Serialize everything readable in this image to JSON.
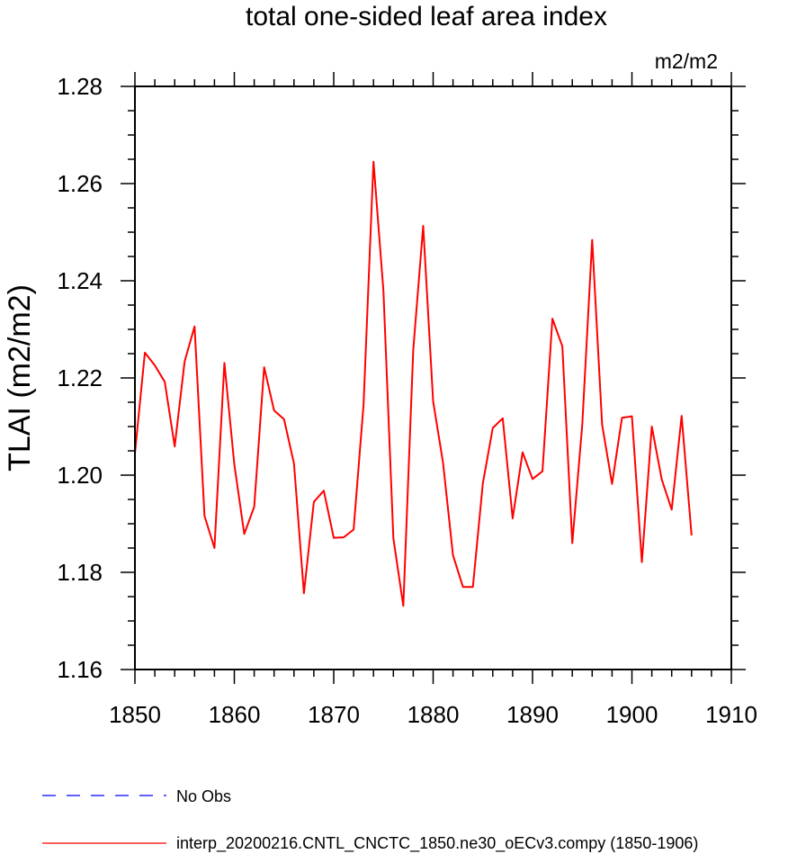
{
  "chart_data": {
    "type": "line",
    "title": "total one-sided leaf area index",
    "units_label": "m2/m2",
    "ylabel": "TLAI  (m2/m2)",
    "xlabel": "",
    "xlim": [
      1850,
      1910
    ],
    "ylim": [
      1.16,
      1.28
    ],
    "x_ticks": [
      1850,
      1860,
      1870,
      1880,
      1890,
      1900,
      1910
    ],
    "y_ticks": [
      "1.16",
      "1.18",
      "1.20",
      "1.22",
      "1.24",
      "1.26",
      "1.28"
    ],
    "grid": false,
    "legend_position": "bottom-left",
    "series": [
      {
        "name": "interp_20200216.CNTL_CNCTC_1850.ne30_oECv3.compy (1850-1906)",
        "color": "#ff0000",
        "style": "solid",
        "x": [
          1850,
          1851,
          1852,
          1853,
          1854,
          1855,
          1856,
          1857,
          1858,
          1859,
          1860,
          1861,
          1862,
          1863,
          1864,
          1865,
          1866,
          1867,
          1868,
          1869,
          1870,
          1871,
          1872,
          1873,
          1874,
          1875,
          1876,
          1877,
          1878,
          1879,
          1880,
          1881,
          1882,
          1883,
          1884,
          1885,
          1886,
          1887,
          1888,
          1889,
          1890,
          1891,
          1892,
          1893,
          1894,
          1895,
          1896,
          1897,
          1898,
          1899,
          1900,
          1901,
          1902,
          1903,
          1904,
          1905,
          1906
        ],
        "values": [
          1.2045,
          1.2252,
          1.2226,
          1.2192,
          1.2059,
          1.2234,
          1.2306,
          1.1916,
          1.185,
          1.2231,
          1.2022,
          1.1879,
          1.1935,
          1.2222,
          1.2133,
          1.2115,
          1.2024,
          1.1757,
          1.1945,
          1.1968,
          1.1871,
          1.1872,
          1.1888,
          1.2145,
          1.2645,
          1.2379,
          1.187,
          1.1731,
          1.2258,
          1.2513,
          1.2152,
          1.2025,
          1.1835,
          1.177,
          1.177,
          1.1983,
          1.2097,
          1.2117,
          1.1911,
          1.2047,
          1.1992,
          1.2008,
          1.2322,
          1.2265,
          1.186,
          1.2103,
          1.2484,
          1.2104,
          1.1982,
          1.2118,
          1.2121,
          1.1821,
          1.21,
          1.1991,
          1.1929,
          1.2122,
          1.1876
        ]
      },
      {
        "name": "No Obs",
        "color": "#0000ff",
        "style": "dashed",
        "x": [],
        "values": []
      }
    ]
  }
}
